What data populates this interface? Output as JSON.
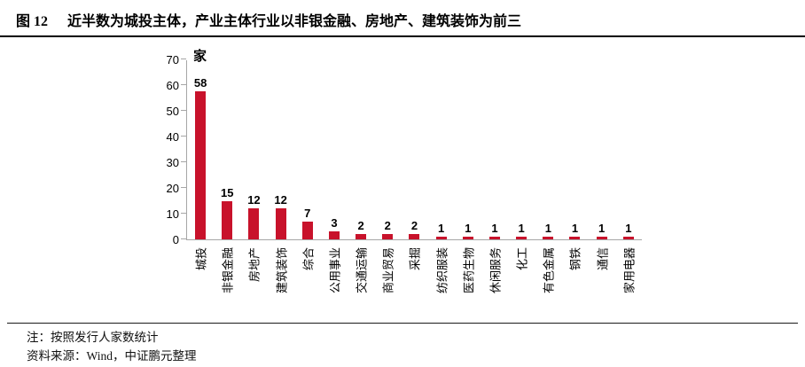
{
  "figure": {
    "label": "图 12",
    "title": "近半数为城投主体，产业主体行业以非银金融、房地产、建筑装饰为前三"
  },
  "chart_data": {
    "type": "bar",
    "title": "",
    "unit_label": "家",
    "categories": [
      "城投",
      "非银金融",
      "房地产",
      "建筑装饰",
      "综合",
      "公用事业",
      "交通运输",
      "商业贸易",
      "采掘",
      "纺织服装",
      "医药生物",
      "休闲服务",
      "化工",
      "有色金属",
      "钢铁",
      "通信",
      "家用电器"
    ],
    "values": [
      58,
      15,
      12,
      12,
      7,
      3,
      2,
      2,
      2,
      1,
      1,
      1,
      1,
      1,
      1,
      1,
      1
    ],
    "xlabel": "",
    "ylabel": "",
    "ylim": [
      0,
      70
    ],
    "yticks": [
      0,
      10,
      20,
      30,
      40,
      50,
      60,
      70
    ],
    "grid": false,
    "legend": false,
    "data_labels": true,
    "bar_color": "#C8122B",
    "axis_color": "#A6A6A6"
  },
  "notes": {
    "note": "注：按照发行人家数统计",
    "source": "资料来源：Wind，中证鹏元整理"
  }
}
